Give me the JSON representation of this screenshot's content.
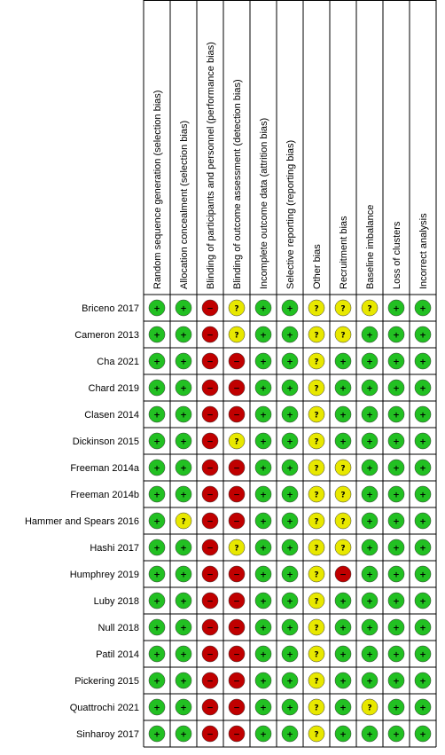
{
  "domains": [
    "Random sequence generation (selection bias)",
    "Allocation concealment (selection bias)",
    "Blinding of participants and personnel (performance bias)",
    "Blinding of outcome assessment (detection bias)",
    "Incomplete outcome data (attrition bias)",
    "Selective reporting (reporting bias)",
    "Other bias",
    "Recruitment bias",
    "Baseline imbalance",
    "Loss of clusters",
    "Incorrect analysis"
  ],
  "symbols": {
    "low": "+",
    "high": "−",
    "unclear": "?"
  },
  "colors": {
    "low": "#22c022",
    "high": "#c00000",
    "unclear": "#e8e800",
    "grid": "#000000"
  },
  "studies": [
    {
      "name": "Briceno 2017",
      "ratings": [
        "low",
        "low",
        "high",
        "unclear",
        "low",
        "low",
        "unclear",
        "unclear",
        "unclear",
        "low",
        "low"
      ]
    },
    {
      "name": "Cameron 2013",
      "ratings": [
        "low",
        "low",
        "high",
        "unclear",
        "low",
        "low",
        "unclear",
        "unclear",
        "low",
        "low",
        "low"
      ]
    },
    {
      "name": "Cha 2021",
      "ratings": [
        "low",
        "low",
        "high",
        "high",
        "low",
        "low",
        "unclear",
        "low",
        "low",
        "low",
        "low"
      ]
    },
    {
      "name": "Chard 2019",
      "ratings": [
        "low",
        "low",
        "high",
        "high",
        "low",
        "low",
        "unclear",
        "low",
        "low",
        "low",
        "low"
      ]
    },
    {
      "name": "Clasen 2014",
      "ratings": [
        "low",
        "low",
        "high",
        "high",
        "low",
        "low",
        "unclear",
        "low",
        "low",
        "low",
        "low"
      ]
    },
    {
      "name": "Dickinson 2015",
      "ratings": [
        "low",
        "low",
        "high",
        "unclear",
        "low",
        "low",
        "unclear",
        "low",
        "low",
        "low",
        "low"
      ]
    },
    {
      "name": "Freeman 2014a",
      "ratings": [
        "low",
        "low",
        "high",
        "high",
        "low",
        "low",
        "unclear",
        "unclear",
        "low",
        "low",
        "low"
      ]
    },
    {
      "name": "Freeman 2014b",
      "ratings": [
        "low",
        "low",
        "high",
        "high",
        "low",
        "low",
        "unclear",
        "unclear",
        "low",
        "low",
        "low"
      ]
    },
    {
      "name": "Hammer and Spears 2016",
      "ratings": [
        "low",
        "unclear",
        "high",
        "high",
        "low",
        "low",
        "unclear",
        "unclear",
        "low",
        "low",
        "low"
      ]
    },
    {
      "name": "Hashi 2017",
      "ratings": [
        "low",
        "low",
        "high",
        "unclear",
        "low",
        "low",
        "unclear",
        "unclear",
        "low",
        "low",
        "low"
      ]
    },
    {
      "name": "Humphrey 2019",
      "ratings": [
        "low",
        "low",
        "high",
        "high",
        "low",
        "low",
        "unclear",
        "high",
        "low",
        "low",
        "low"
      ]
    },
    {
      "name": "Luby 2018",
      "ratings": [
        "low",
        "low",
        "high",
        "high",
        "low",
        "low",
        "unclear",
        "low",
        "low",
        "low",
        "low"
      ]
    },
    {
      "name": "Null 2018",
      "ratings": [
        "low",
        "low",
        "high",
        "high",
        "low",
        "low",
        "unclear",
        "low",
        "low",
        "low",
        "low"
      ]
    },
    {
      "name": "Patil 2014",
      "ratings": [
        "low",
        "low",
        "high",
        "high",
        "low",
        "low",
        "unclear",
        "low",
        "low",
        "low",
        "low"
      ]
    },
    {
      "name": "Pickering 2015",
      "ratings": [
        "low",
        "low",
        "high",
        "high",
        "low",
        "low",
        "unclear",
        "low",
        "low",
        "low",
        "low"
      ]
    },
    {
      "name": "Quattrochi 2021",
      "ratings": [
        "low",
        "low",
        "high",
        "high",
        "low",
        "low",
        "unclear",
        "low",
        "unclear",
        "low",
        "low"
      ]
    },
    {
      "name": "Sinharoy 2017",
      "ratings": [
        "low",
        "low",
        "high",
        "high",
        "low",
        "low",
        "unclear",
        "low",
        "low",
        "low",
        "low"
      ]
    }
  ]
}
